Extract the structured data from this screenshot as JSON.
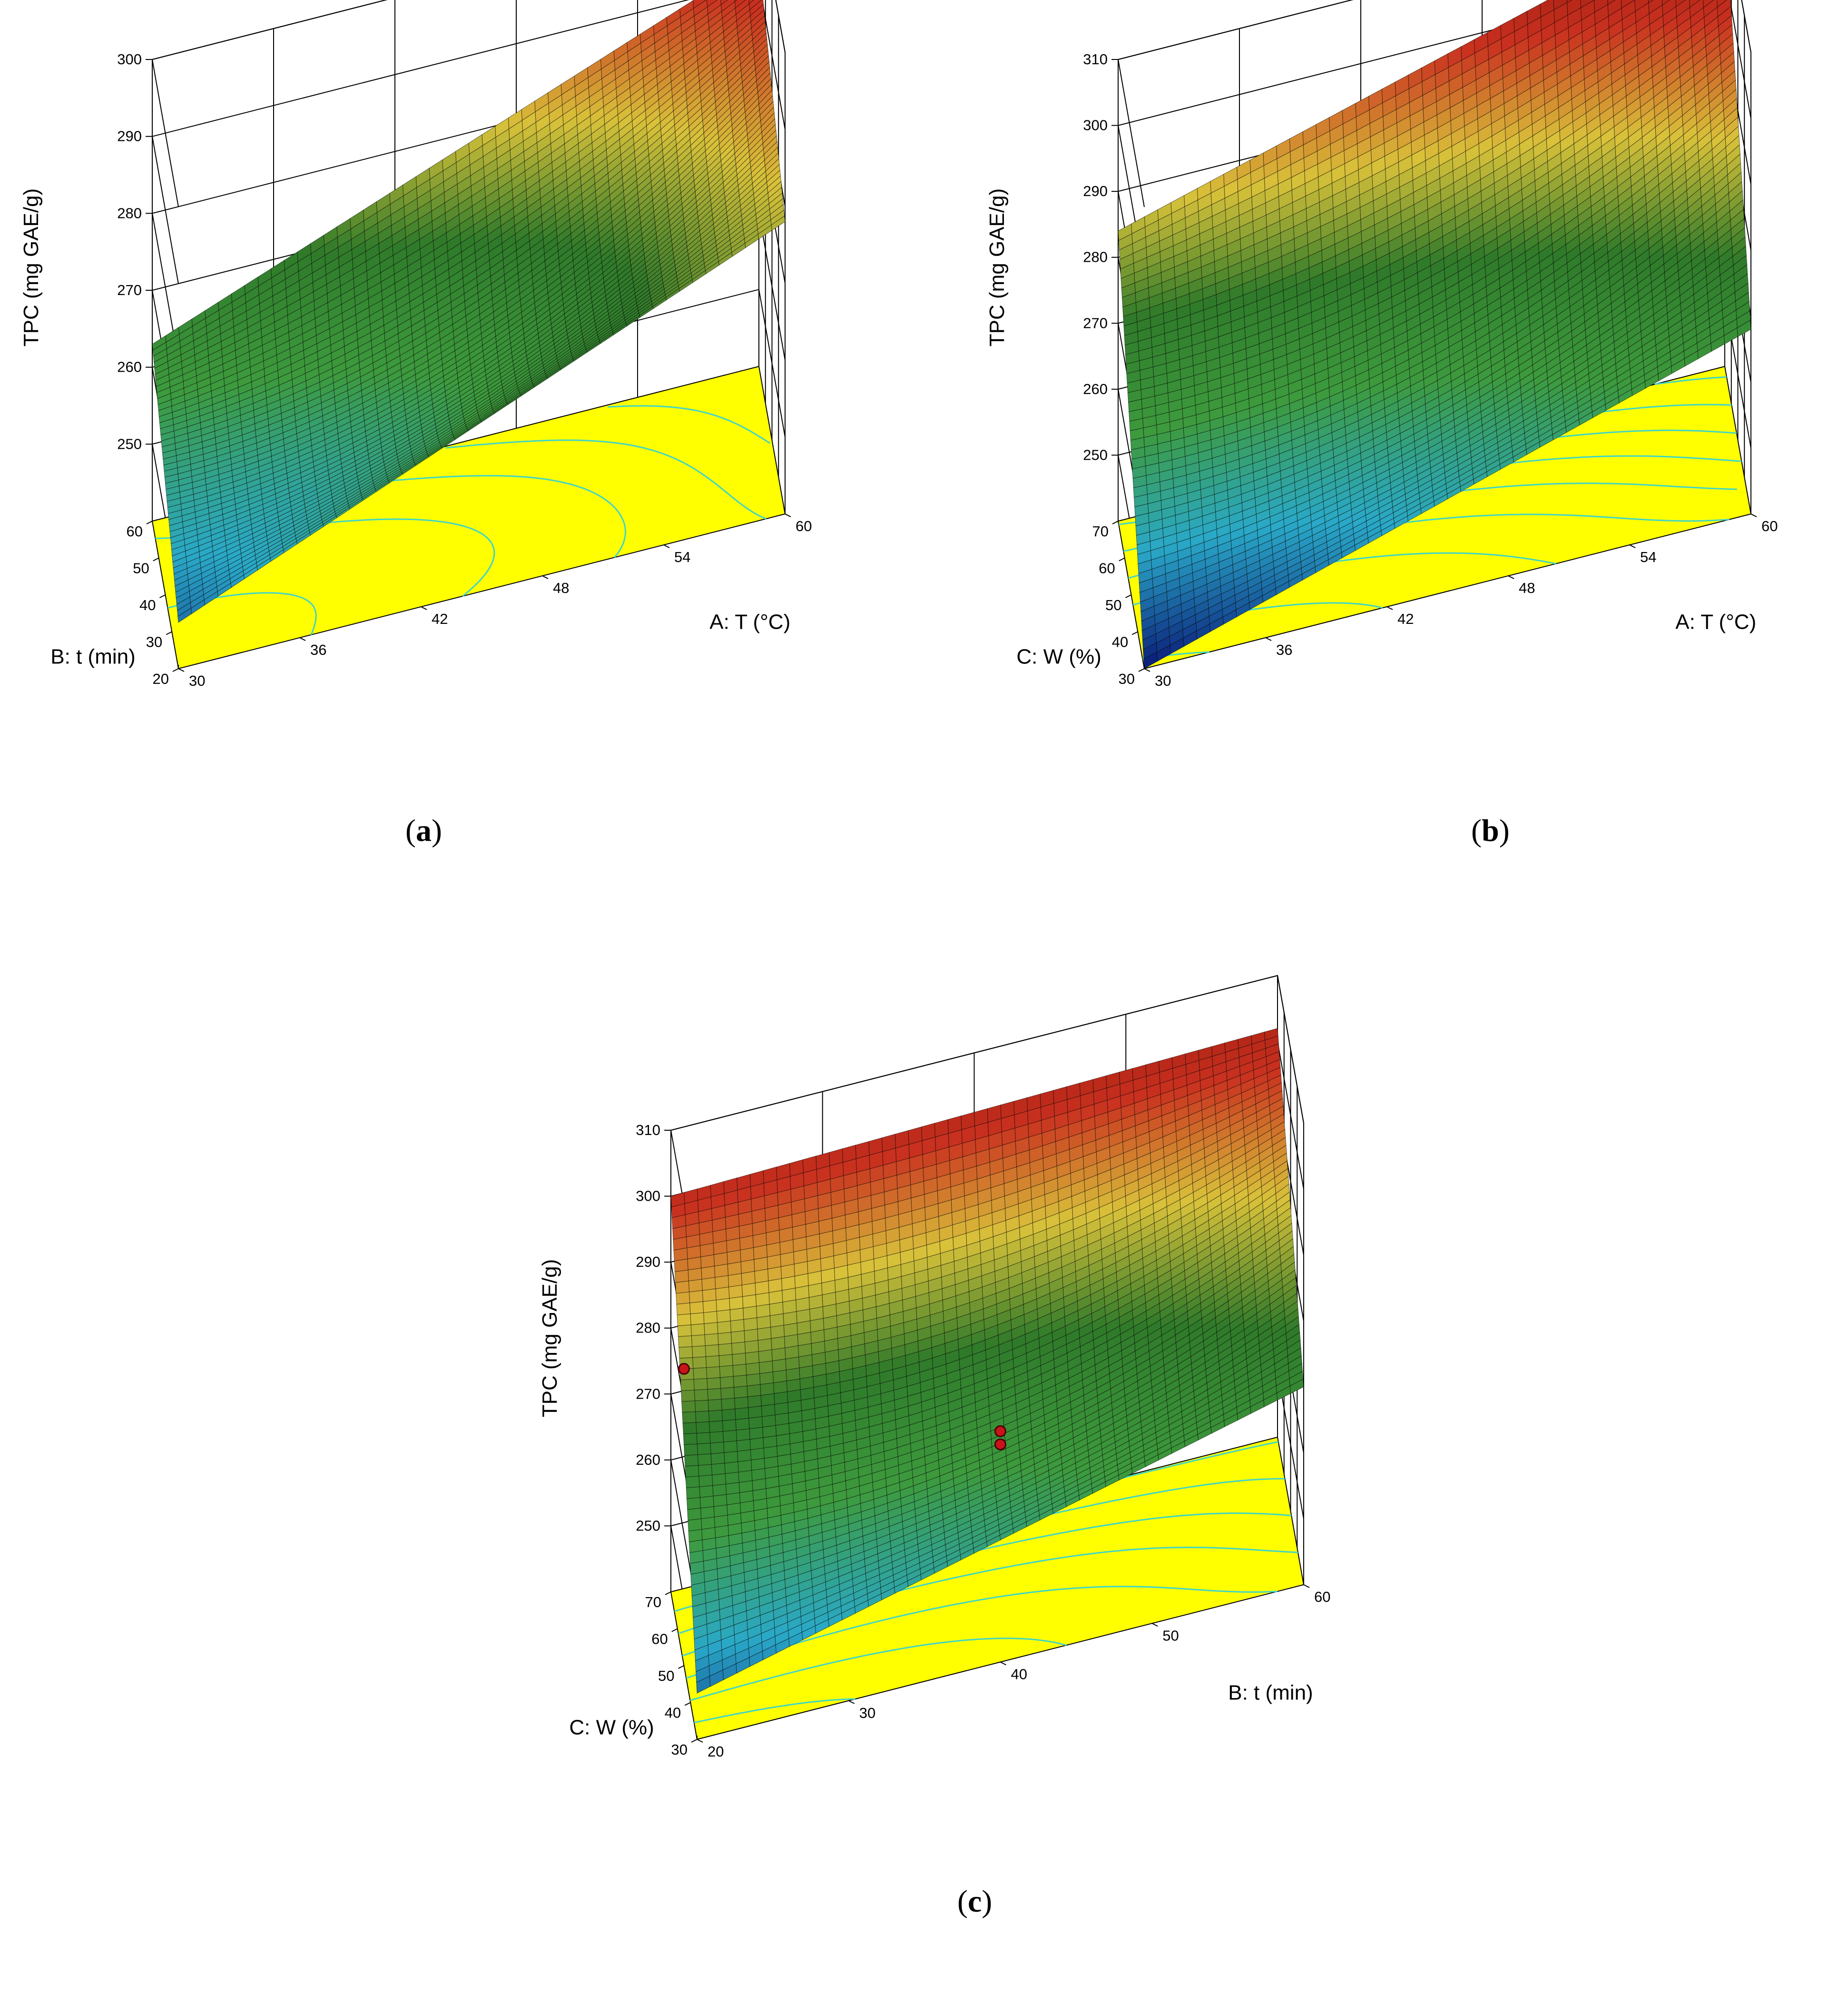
{
  "colors": {
    "floor": "#ffff00",
    "contour": "#3fd5c8",
    "grid": "#000000",
    "colormap": [
      "#0a1a78",
      "#2aa9c8",
      "#3d9a3d",
      "#2f7a2a",
      "#d9c23a",
      "#c9301f",
      "#8a1208"
    ],
    "design_point": "#c8141b"
  },
  "chart_data": [
    {
      "id": "a",
      "type": "surface",
      "caption": "a",
      "zlabel": "TPC (mg GAE/g)",
      "zlim": [
        240,
        300
      ],
      "zticks": [
        "250",
        "260",
        "270",
        "280",
        "290",
        "300"
      ],
      "x_axis": {
        "label": "A: T (°C)",
        "range": [
          30,
          60
        ],
        "ticks": [
          "30",
          "36",
          "42",
          "48",
          "54",
          "60"
        ]
      },
      "y_axis": {
        "label": "B: t (min)",
        "range": [
          20,
          60
        ],
        "ticks": [
          "20",
          "30",
          "40",
          "50",
          "60"
        ]
      },
      "surface_corners": {
        "x30_y20": 246,
        "x60_y20": 278,
        "x30_y60": 263,
        "x60_y60": 293
      },
      "surface_min": 246,
      "surface_max": 293,
      "floor_contours": true,
      "design_points": []
    },
    {
      "id": "b",
      "type": "surface",
      "caption": "b",
      "zlabel": "TPC (mg GAE/g)",
      "zlim": [
        240,
        310
      ],
      "zticks": [
        "250",
        "260",
        "270",
        "280",
        "290",
        "300",
        "310"
      ],
      "x_axis": {
        "label": "A: T (°C)",
        "range": [
          30,
          60
        ],
        "ticks": [
          "30",
          "36",
          "42",
          "48",
          "54",
          "60"
        ]
      },
      "y_axis": {
        "label": "C: W (%)",
        "range": [
          30,
          70
        ],
        "ticks": [
          "30",
          "40",
          "50",
          "60",
          "70"
        ]
      },
      "surface_corners": {
        "x30_y30": 240,
        "x60_y30": 268,
        "x30_y70": 284,
        "x60_y70": 310
      },
      "surface_min": 240,
      "surface_max": 310,
      "floor_contours": true,
      "design_points": []
    },
    {
      "id": "c",
      "type": "surface",
      "caption": "c",
      "zlabel": "TPC (mg GAE/g)",
      "zlim": [
        240,
        310
      ],
      "zticks": [
        "250",
        "260",
        "270",
        "280",
        "290",
        "300",
        "310"
      ],
      "x_axis": {
        "label": "B: t (min)",
        "range": [
          20,
          60
        ],
        "ticks": [
          "20",
          "30",
          "40",
          "50",
          "60"
        ]
      },
      "y_axis": {
        "label": "C: W (%)",
        "range": [
          30,
          70
        ],
        "ticks": [
          "30",
          "40",
          "50",
          "60",
          "70"
        ]
      },
      "surface_corners": {
        "x20_y30": 247,
        "x60_y30": 270,
        "x20_y70": 300,
        "x60_y70": 302
      },
      "surface_min": 247,
      "surface_max": 302,
      "floor_contours": true,
      "design_points": [
        {
          "x": 20,
          "y": 50,
          "z": 285
        },
        {
          "x": 40,
          "y": 30,
          "z": 275
        },
        {
          "x": 40,
          "y": 30,
          "z": 273
        }
      ]
    }
  ]
}
